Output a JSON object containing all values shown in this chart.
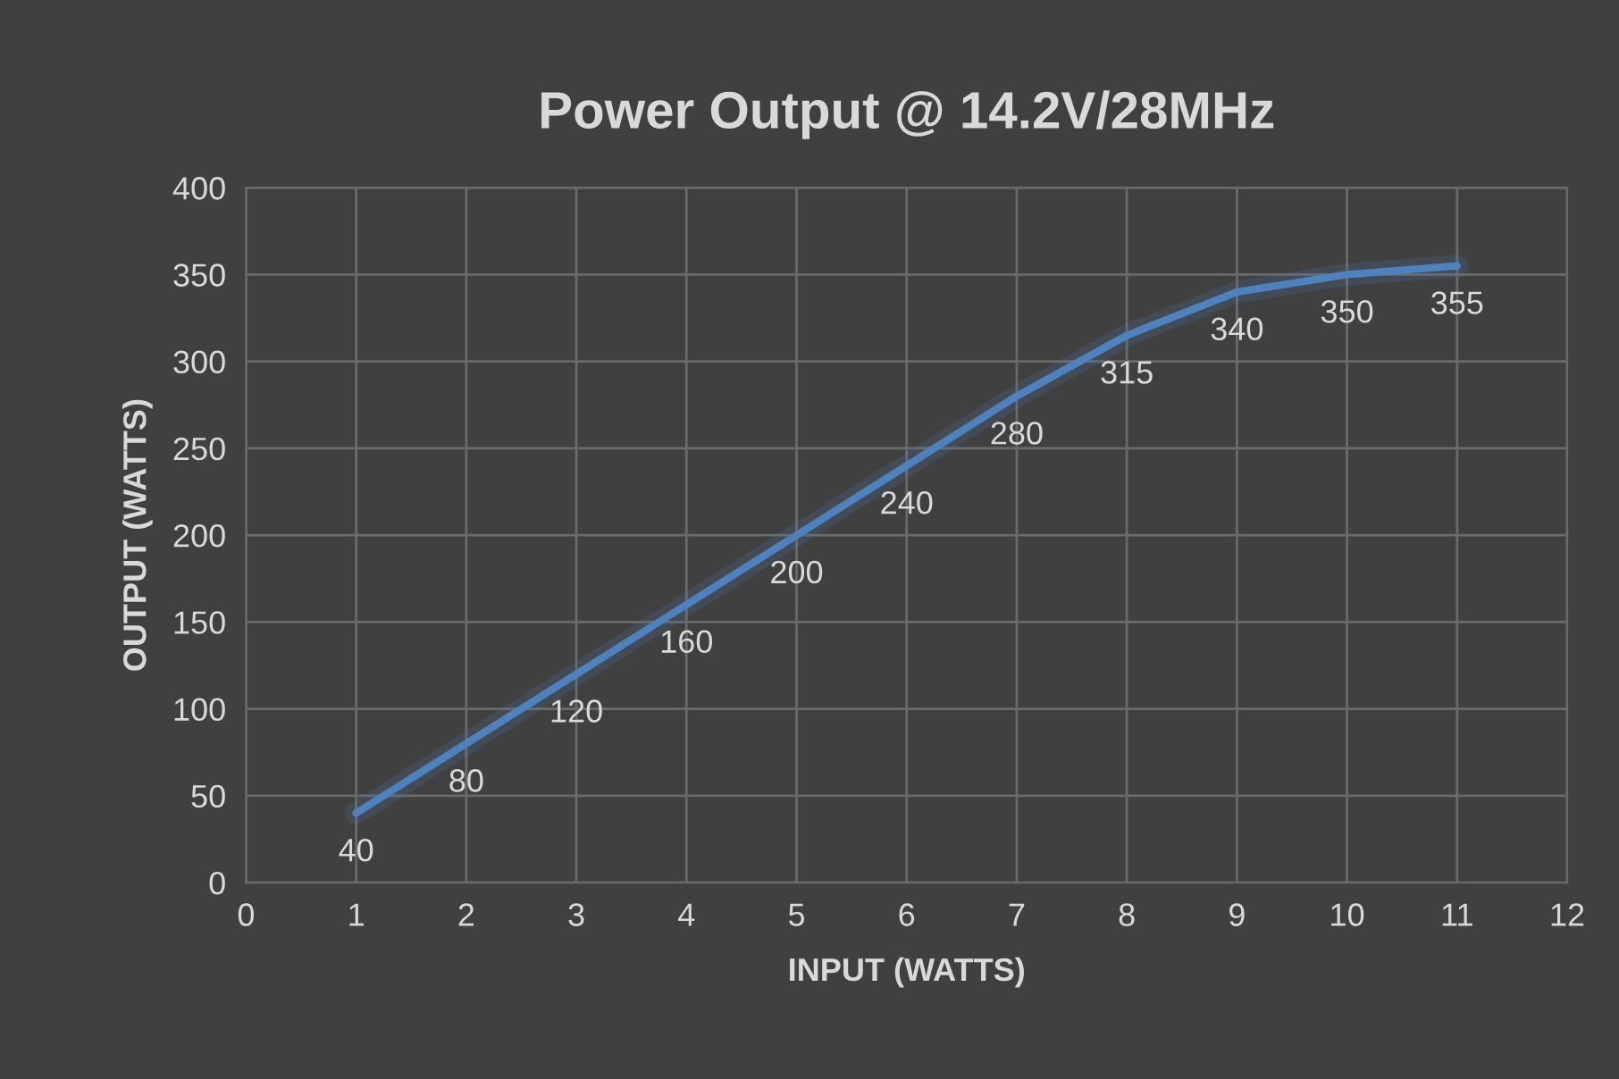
{
  "chart_data": {
    "type": "line",
    "title": "Power Output @ 14.2V/28MHz",
    "xlabel": "INPUT (WATTS)",
    "ylabel": "OUTPUT (WATTS)",
    "x": [
      1,
      2,
      3,
      4,
      5,
      6,
      7,
      8,
      9,
      10,
      11
    ],
    "series": [
      {
        "color": "#4f81bd",
        "values": [
          40,
          80,
          120,
          160,
          200,
          240,
          280,
          315,
          340,
          350,
          355
        ]
      }
    ],
    "xlim": [
      0,
      12
    ],
    "xticks": [
      0,
      1,
      2,
      3,
      4,
      5,
      6,
      7,
      8,
      9,
      10,
      11,
      12
    ],
    "ylim": [
      0,
      400
    ],
    "yticks": [
      0,
      50,
      100,
      150,
      200,
      250,
      300,
      350,
      400
    ],
    "grid": true,
    "data_labels": true,
    "line_style": "solid"
  }
}
